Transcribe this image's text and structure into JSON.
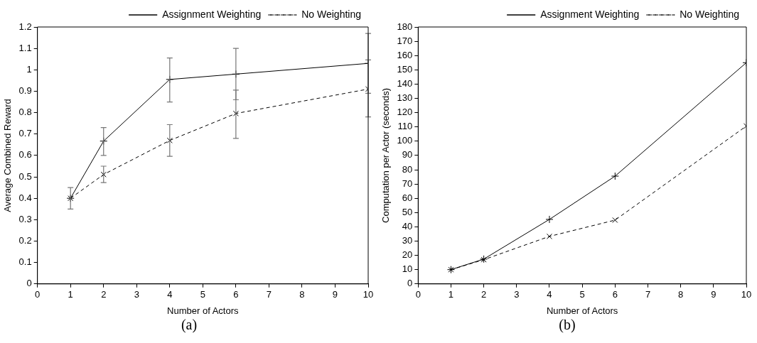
{
  "chart_data": [
    {
      "type": "line",
      "xlabel": "Number of Actors",
      "ylabel": "Average Combined Reward",
      "annotations": [
        "(a)"
      ],
      "x": [
        1,
        2,
        4,
        6,
        10
      ],
      "series": [
        {
          "name": "Assignment Weighting",
          "color": "#000000",
          "marker": "plus",
          "line_style": "solid",
          "values": [
            0.4,
            0.667,
            0.955,
            0.98,
            1.03
          ],
          "errors": [
            [
              0.35,
              0.45
            ],
            [
              0.6,
              0.73
            ],
            [
              0.85,
              1.055
            ],
            [
              0.86,
              1.1
            ],
            [
              0.89,
              1.17
            ]
          ]
        },
        {
          "name": "No Weighting",
          "color": "#000000",
          "marker": "cross",
          "line_style": "dashed",
          "values": [
            0.4,
            0.511,
            0.67,
            0.796,
            0.91
          ],
          "errors": [
            null,
            [
              0.473,
              0.55
            ],
            [
              0.596,
              0.744
            ],
            [
              0.68,
              0.905
            ],
            [
              0.78,
              1.046
            ]
          ]
        }
      ],
      "xlim": [
        0,
        10
      ],
      "xticks": [
        0,
        1,
        2,
        3,
        4,
        5,
        6,
        7,
        8,
        9,
        10
      ],
      "ylim": [
        0,
        1.2
      ],
      "yticks": [
        0,
        0.1,
        0.2,
        0.3,
        0.4,
        0.5,
        0.6,
        0.7,
        0.8,
        0.9,
        1,
        1.1,
        1.2
      ],
      "legend": "top right",
      "grid": false
    },
    {
      "type": "line",
      "xlabel": "Number of Actors",
      "ylabel": "Computation per Actor (seconds)",
      "annotations": [
        "(b)"
      ],
      "x": [
        1,
        2,
        4,
        6,
        10
      ],
      "series": [
        {
          "name": "Assignment Weighting",
          "color": "#000000",
          "marker": "plus",
          "line_style": "solid",
          "values": [
            10,
            17.4,
            45.2,
            75.5,
            155
          ]
        },
        {
          "name": "No Weighting",
          "color": "#000000",
          "marker": "cross",
          "line_style": "dashed",
          "values": [
            10,
            17,
            33.3,
            44.7,
            110.6
          ]
        }
      ],
      "xlim": [
        0,
        10
      ],
      "xticks": [
        0,
        1,
        2,
        3,
        4,
        5,
        6,
        7,
        8,
        9,
        10
      ],
      "ylim": [
        0,
        180
      ],
      "yticks": [
        0,
        10,
        20,
        30,
        40,
        50,
        60,
        70,
        80,
        90,
        100,
        110,
        120,
        130,
        140,
        150,
        160,
        170,
        180
      ],
      "legend": "top right",
      "grid": false
    }
  ]
}
